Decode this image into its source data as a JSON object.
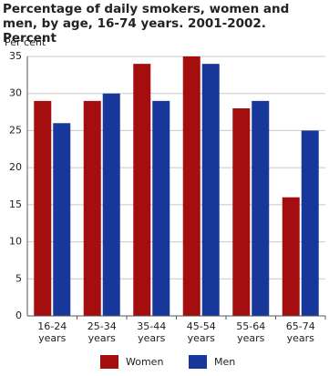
{
  "chart_data": {
    "type": "bar",
    "title": "Percentage of daily smokers, women and men, by age, 16-74 years. 2001-2002. Percent",
    "y_label": "Per cent",
    "categories": [
      "16-24 years",
      "25-34 years",
      "35-44 years",
      "45-54 years",
      "55-64 years",
      "65-74 years"
    ],
    "series": [
      {
        "name": "Women",
        "color": "#a50e0e",
        "values": [
          29,
          29,
          34,
          35,
          28,
          16
        ]
      },
      {
        "name": "Men",
        "color": "#17389a",
        "values": [
          26,
          30,
          29,
          34,
          29,
          25
        ]
      }
    ],
    "ylim": [
      0,
      35
    ],
    "yticks": [
      0,
      5,
      10,
      15,
      20,
      25,
      30,
      35
    ],
    "grid": true,
    "legend": "bottom"
  }
}
